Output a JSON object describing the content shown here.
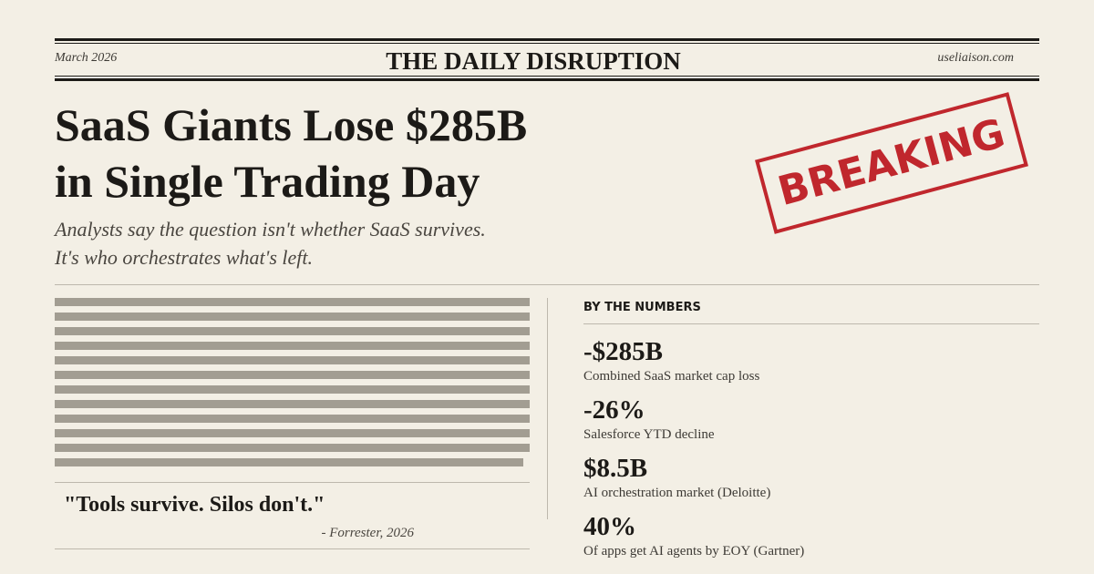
{
  "masthead": {
    "date": "March 2026",
    "title": "THE DAILY DISRUPTION",
    "site": "useliaison.com"
  },
  "headline": {
    "lines": [
      "SaaS Giants Lose $285B",
      "in Single Trading Day"
    ]
  },
  "stamp": "BREAKING",
  "subtitle": {
    "lines": [
      "Analysts say the question isn't whether SaaS survives.",
      "It's who orchestrates what's left."
    ]
  },
  "quote": {
    "text": "\"Tools survive. Silos don't.\"",
    "attribution": "- Forrester, 2026"
  },
  "sidebar": {
    "heading": "BY THE NUMBERS",
    "stats": [
      {
        "value": "-$285B",
        "label": "Combined SaaS market cap loss"
      },
      {
        "value": "-26%",
        "label": "Salesforce YTD decline"
      },
      {
        "value": "$8.5B",
        "label": "AI orchestration market (Deloitte)"
      },
      {
        "value": "40%",
        "label": "Of apps get AI agents by EOY (Gartner)"
      }
    ]
  }
}
